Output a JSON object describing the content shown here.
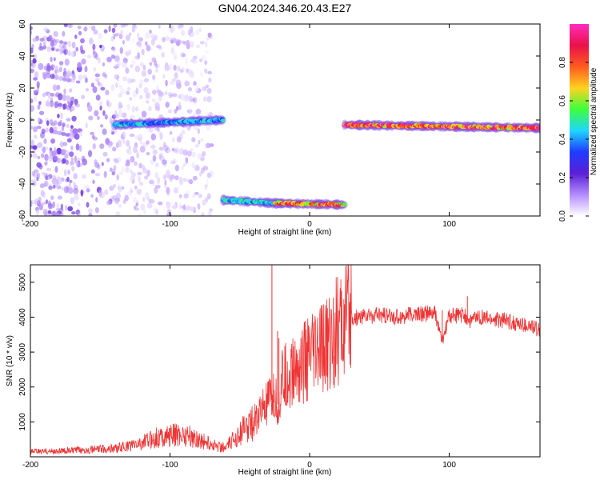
{
  "title": "GN04.2024.346.20.43.E27",
  "colors": {
    "axis": "#000000",
    "snr_line": "#ee3333",
    "colormap": [
      "#ffffff",
      "#b48cff",
      "#5a1fd6",
      "#1f3bff",
      "#1fd6ff",
      "#3cff3c",
      "#ffd21f",
      "#ff5a1f",
      "#e8124a",
      "#ff2dbe"
    ]
  },
  "chart_data": [
    {
      "type": "heatmap",
      "title": "GN04.2024.346.20.43.E27",
      "xlabel": "Height of straight line (km)",
      "ylabel": "Frequency (Hz)",
      "xlim": [
        -200,
        165
      ],
      "ylim": [
        -60,
        60
      ],
      "xticks": [
        -200,
        -100,
        0,
        100
      ],
      "yticks": [
        60,
        40,
        20,
        0,
        -20,
        -40,
        -60
      ],
      "ytick_labels": [
        "60",
        "40",
        "20",
        "0",
        "-20",
        "-40",
        "-60"
      ],
      "colorbar": {
        "label": "Normalized spectral amplitude",
        "range": [
          0,
          1
        ],
        "ticks": [
          "0.0",
          "0.2",
          "0.4",
          "0.6",
          "0.8"
        ]
      },
      "features": [
        {
          "x_range": [
            -200,
            -70
          ],
          "y_range": [
            -60,
            60
          ],
          "amplitude": 0.1,
          "kind": "scattered_noise"
        },
        {
          "x_range": [
            -140,
            -62
          ],
          "y_center": [
            -3,
            0
          ],
          "amplitude": 0.45,
          "kind": "band"
        },
        {
          "x_range": [
            -62,
            -25
          ],
          "y_center": [
            -50,
            -52
          ],
          "amplitude": 0.5,
          "kind": "band"
        },
        {
          "x_range": [
            -25,
            25
          ],
          "y_center": [
            -52,
            -53
          ],
          "amplitude": 0.85,
          "kind": "band"
        },
        {
          "x_range": [
            25,
            165
          ],
          "y_center": [
            -3,
            -5
          ],
          "amplitude": 0.9,
          "kind": "band"
        }
      ]
    },
    {
      "type": "line",
      "xlabel": "Height of straight line (km)",
      "ylabel": "SNR (10 * v/v)",
      "xlim": [
        -200,
        165
      ],
      "ylim": [
        0,
        5500
      ],
      "xticks": [
        -200,
        -100,
        0,
        100
      ],
      "yticks": [
        1000,
        2000,
        3000,
        4000,
        5000
      ],
      "series": [
        {
          "x": [
            -200,
            -180,
            -160,
            -140,
            -130,
            -120,
            -110,
            -100,
            -90,
            -80,
            -70,
            -60,
            -50,
            -40,
            -35,
            -30,
            -25,
            -22,
            -20,
            -15,
            -10,
            -5,
            0,
            5,
            10,
            15,
            20,
            25,
            30,
            40,
            50,
            60,
            70,
            80,
            90,
            95,
            100,
            110,
            115,
            120,
            130,
            140,
            150,
            160,
            165
          ],
          "y": [
            150,
            160,
            200,
            240,
            300,
            400,
            550,
            600,
            650,
            500,
            350,
            250,
            700,
            1000,
            1300,
            1500,
            1700,
            1400,
            2200,
            2300,
            2500,
            2700,
            2800,
            2950,
            3100,
            3350,
            3600,
            3800,
            3950,
            4050,
            4050,
            4000,
            4050,
            4100,
            4100,
            3300,
            4050,
            4050,
            3900,
            4000,
            3950,
            3900,
            3800,
            3700,
            3650
          ]
        }
      ],
      "spikes": [
        {
          "x": -27,
          "y": 5500
        },
        {
          "x": -23,
          "y": 3600
        },
        {
          "x": -22,
          "y": 3400
        },
        {
          "x": 95,
          "y": 4200
        },
        {
          "x": 113,
          "y": 4600
        }
      ]
    }
  ]
}
